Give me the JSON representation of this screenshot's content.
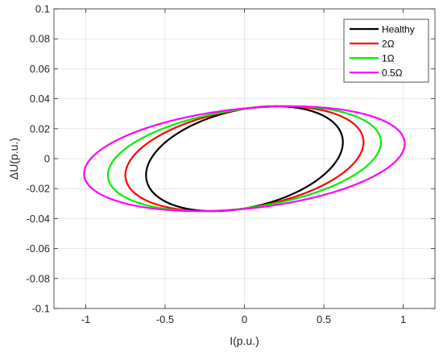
{
  "chart_data": {
    "type": "line",
    "xlabel": "I(p.u.)",
    "ylabel": "ΔU(p.u.)",
    "xlim": [
      -1.2,
      1.2
    ],
    "ylim": [
      -0.1,
      0.1
    ],
    "xticks": [
      -1,
      -0.5,
      0,
      0.5,
      1
    ],
    "xtick_labels": [
      "-1",
      "-0.5",
      "0",
      "0.5",
      "1"
    ],
    "yticks": [
      -0.1,
      -0.08,
      -0.06,
      -0.04,
      -0.02,
      0,
      0.02,
      0.04,
      0.06,
      0.08,
      0.1
    ],
    "ytick_labels": [
      "-0.1",
      "-0.08",
      "-0.06",
      "-0.04",
      "-0.02",
      "0",
      "0.02",
      "0.04",
      "0.06",
      "0.08",
      "0.1"
    ],
    "grid": true,
    "legend_position": "top-right",
    "series": [
      {
        "name": "Healthy",
        "color": "#000000",
        "x_extent": [
          -0.62,
          0.62
        ],
        "y_at_x_extent": [
          -0.011,
          0.011
        ],
        "y_extent": [
          -0.035,
          0.035
        ],
        "x_at_y_extent": [
          -0.2,
          0.2
        ]
      },
      {
        "name": "2Ω",
        "color": "#ff0000",
        "x_extent": [
          -0.75,
          0.75
        ],
        "y_at_x_extent": [
          -0.011,
          0.011
        ],
        "y_extent": [
          -0.035,
          0.035
        ],
        "x_at_y_extent": [
          -0.2,
          0.2
        ]
      },
      {
        "name": "1Ω",
        "color": "#00ee00",
        "x_extent": [
          -0.86,
          0.86
        ],
        "y_at_x_extent": [
          -0.011,
          0.011
        ],
        "y_extent": [
          -0.035,
          0.035
        ],
        "x_at_y_extent": [
          -0.2,
          0.2
        ]
      },
      {
        "name": "0.5Ω",
        "color": "#ff00ff",
        "x_extent": [
          -1.01,
          1.01
        ],
        "y_at_x_extent": [
          -0.01,
          0.01
        ],
        "y_extent": [
          -0.035,
          0.035
        ],
        "x_at_y_extent": [
          -0.2,
          0.2
        ]
      }
    ]
  }
}
